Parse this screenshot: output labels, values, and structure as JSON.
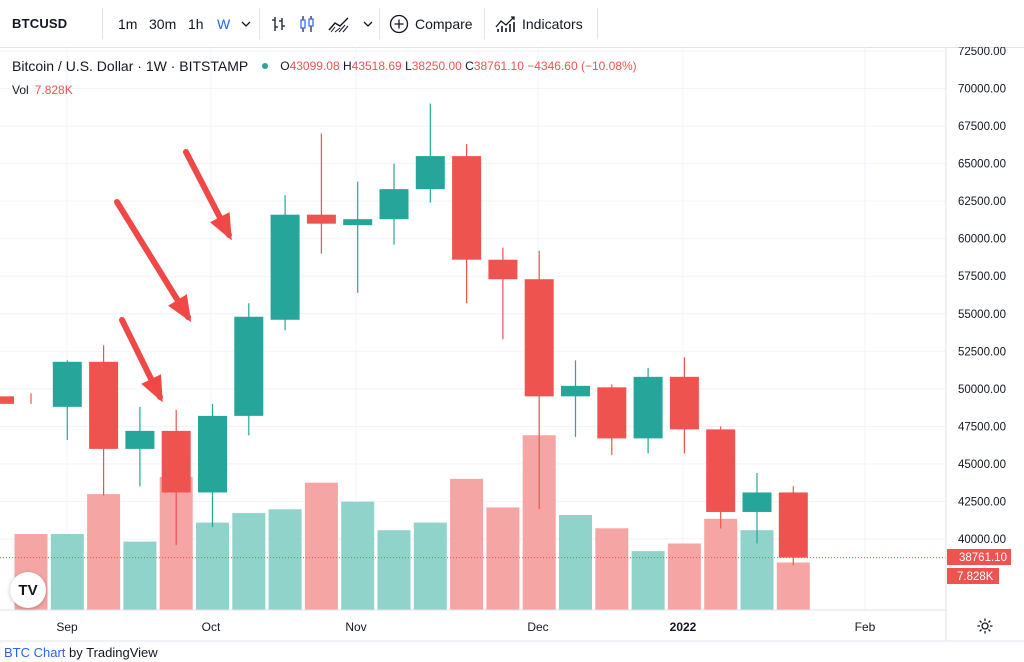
{
  "toolbar": {
    "symbol": "BTCUSD",
    "intervals": [
      "1m",
      "30m",
      "1h",
      "W"
    ],
    "compare_label": "Compare",
    "indicators_label": "Indicators",
    "icons": [
      "chevron-down-icon",
      "bar-style-icon",
      "candle-style-icon",
      "area-style-icon",
      "chevron-down-icon",
      "compare-plus-icon",
      "indicators-icon"
    ]
  },
  "legend": {
    "title": "Bitcoin / U.S. Dollar · 1W · BITSTAMP",
    "o_label": "O",
    "o_value": "43099.08",
    "h_label": "H",
    "h_value": "43518.69",
    "l_label": "L",
    "l_value": "38250.00",
    "c_label": "C",
    "c_value": "38761.10",
    "change": "−4346.60 (−10.08%)",
    "vol_label": "Vol",
    "vol_value": "7.828K"
  },
  "price_tag": "38761.10",
  "volume_tag": "7.828K",
  "logo_text": "TV",
  "attribution": {
    "link": "BTC Chart",
    "rest": "by TradingView"
  },
  "colors": {
    "up": "#26a69a",
    "down": "#ef5350",
    "up_vol": "#8fd3cb",
    "down_vol": "#f5a6a4",
    "grid": "#f0f3fa"
  },
  "chart_data": {
    "type": "candlestick",
    "interval": "1W",
    "y_ticks": [
      "72500.00",
      "70000.00",
      "67500.00",
      "65000.00",
      "62500.00",
      "60000.00",
      "57500.00",
      "55000.00",
      "52500.00",
      "50000.00",
      "47500.00",
      "45000.00",
      "42500.00",
      "40000.00"
    ],
    "x_ticks": [
      "Sep",
      "Oct",
      "Nov",
      "Dec",
      "2022",
      "Feb"
    ],
    "ylim": [
      36000,
      73500
    ],
    "candles": [
      {
        "o": 49500,
        "h": 49700,
        "l": 49000,
        "c": 49000
      },
      {
        "o": 48800,
        "h": 51900,
        "l": 46600,
        "c": 51800
      },
      {
        "o": 51800,
        "h": 52900,
        "l": 42900,
        "c": 46000
      },
      {
        "o": 46000,
        "h": 48800,
        "l": 43500,
        "c": 47200
      },
      {
        "o": 47200,
        "h": 48600,
        "l": 39600,
        "c": 43100
      },
      {
        "o": 43100,
        "h": 49000,
        "l": 40800,
        "c": 48200
      },
      {
        "o": 48200,
        "h": 55700,
        "l": 46900,
        "c": 54800
      },
      {
        "o": 54600,
        "h": 62900,
        "l": 53900,
        "c": 61600
      },
      {
        "o": 61600,
        "h": 67000,
        "l": 59000,
        "c": 61000
      },
      {
        "o": 60900,
        "h": 63800,
        "l": 56400,
        "c": 61300
      },
      {
        "o": 61300,
        "h": 65000,
        "l": 59600,
        "c": 63300
      },
      {
        "o": 63300,
        "h": 69000,
        "l": 62400,
        "c": 65500
      },
      {
        "o": 65500,
        "h": 66300,
        "l": 55700,
        "c": 58600
      },
      {
        "o": 58600,
        "h": 59400,
        "l": 53300,
        "c": 57300
      },
      {
        "o": 57300,
        "h": 59200,
        "l": 42000,
        "c": 49500
      },
      {
        "o": 49500,
        "h": 51900,
        "l": 46800,
        "c": 50200
      },
      {
        "o": 50100,
        "h": 50300,
        "l": 45600,
        "c": 46700
      },
      {
        "o": 46700,
        "h": 51400,
        "l": 45700,
        "c": 50800
      },
      {
        "o": 50800,
        "h": 52100,
        "l": 45700,
        "c": 47300
      },
      {
        "o": 47300,
        "h": 47500,
        "l": 40700,
        "c": 41800
      },
      {
        "o": 41800,
        "h": 44400,
        "l": 39700,
        "c": 43100
      },
      {
        "o": 43100,
        "h": 43518.69,
        "l": 38250,
        "c": 38761.1
      }
    ],
    "volume_levels": [
      0.4,
      0.4,
      0.61,
      0.36,
      0.7,
      0.46,
      0.51,
      0.53,
      0.67,
      0.57,
      0.42,
      0.46,
      0.69,
      0.54,
      0.92,
      0.5,
      0.43,
      0.31,
      0.35,
      0.48,
      0.42,
      0.25
    ],
    "last_price": 38761.1,
    "annotations": [
      "arrow",
      "arrow",
      "arrow"
    ]
  }
}
